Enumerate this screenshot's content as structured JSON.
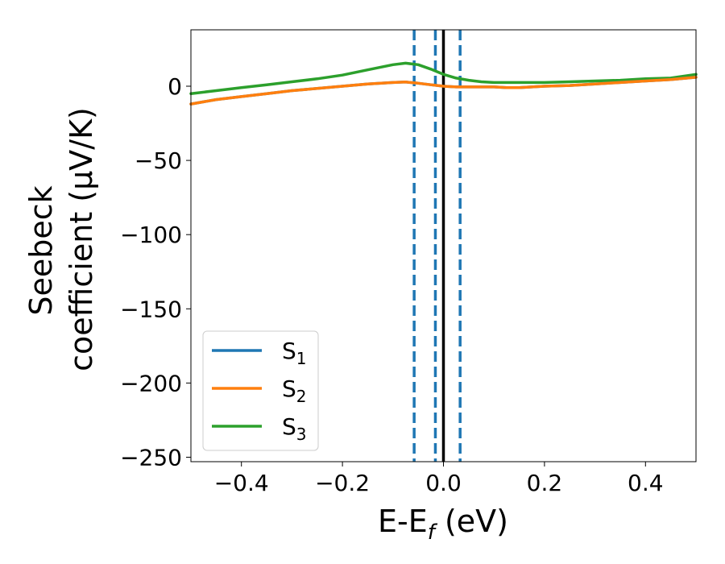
{
  "chart_data": {
    "type": "line",
    "xlabel_main": "E-E",
    "xlabel_sub": "f",
    "xlabel_unit": " (eV)",
    "ylabel_line1": "Seebeck",
    "ylabel_line2": "coefficient  (μV/K)",
    "xlim": [
      -0.5,
      0.5
    ],
    "ylim": [
      -253,
      38
    ],
    "grid": false,
    "legend_placement": "lower-left",
    "x_ticks": [
      -0.4,
      -0.2,
      0.0,
      0.2,
      0.4
    ],
    "x_tick_labels": [
      "−0.4",
      "−0.2",
      "0.0",
      "0.2",
      "0.4"
    ],
    "y_ticks": [
      0,
      -50,
      -100,
      -150,
      -200,
      -250
    ],
    "y_tick_labels": [
      "0",
      "−50",
      "−100",
      "−150",
      "−200",
      "−250"
    ],
    "vertical_lines": [
      {
        "x": -0.058,
        "style": "dashed",
        "color": "#1f77b4"
      },
      {
        "x": -0.016,
        "style": "dashed",
        "color": "#1f77b4"
      },
      {
        "x": 0.033,
        "style": "dashed",
        "color": "#1f77b4"
      },
      {
        "x": 0.0,
        "style": "solid",
        "color": "#000000"
      }
    ],
    "series": [
      {
        "name": "S",
        "subscript": "1",
        "color": "#1f77b4",
        "x": [
          -0.5,
          -0.45,
          -0.4,
          -0.35,
          -0.3,
          -0.25,
          -0.2,
          -0.15,
          -0.1,
          -0.075,
          -0.05,
          -0.025,
          0.0,
          0.025,
          0.05,
          0.075,
          0.1,
          0.125,
          0.15,
          0.2,
          0.25,
          0.3,
          0.35,
          0.4,
          0.45,
          0.5
        ],
        "values": [
          -12,
          -9,
          -7,
          -5,
          -3,
          -1.5,
          0,
          1.5,
          2.5,
          2.8,
          2,
          1,
          0,
          -0.5,
          -0.5,
          -0.5,
          -0.5,
          -1,
          -1,
          0,
          0.5,
          1.5,
          2.5,
          3.5,
          4.5,
          6
        ]
      },
      {
        "name": "S",
        "subscript": "2",
        "color": "#ff7f0e",
        "x": [
          -0.5,
          -0.45,
          -0.4,
          -0.35,
          -0.3,
          -0.25,
          -0.2,
          -0.15,
          -0.1,
          -0.075,
          -0.05,
          -0.025,
          0.0,
          0.025,
          0.05,
          0.075,
          0.1,
          0.125,
          0.15,
          0.2,
          0.25,
          0.3,
          0.35,
          0.4,
          0.45,
          0.5
        ],
        "values": [
          -12,
          -9,
          -7,
          -5,
          -3,
          -1.5,
          0,
          1.5,
          2.5,
          2.8,
          2,
          1,
          0,
          -0.5,
          -0.5,
          -0.5,
          -0.5,
          -1,
          -1,
          0,
          0.5,
          1.5,
          2.5,
          3.5,
          4.5,
          6
        ]
      },
      {
        "name": "S",
        "subscript": "3",
        "color": "#2ca02c",
        "x": [
          -0.5,
          -0.45,
          -0.4,
          -0.35,
          -0.3,
          -0.25,
          -0.2,
          -0.15,
          -0.1,
          -0.075,
          -0.05,
          -0.025,
          0.0,
          0.025,
          0.05,
          0.075,
          0.1,
          0.125,
          0.15,
          0.2,
          0.25,
          0.3,
          0.35,
          0.4,
          0.45,
          0.5
        ],
        "values": [
          -5,
          -3,
          -1,
          1,
          3,
          5,
          7.5,
          11,
          14.5,
          15.5,
          14.5,
          11.5,
          8,
          5.5,
          4,
          3,
          2.5,
          2.5,
          2.5,
          2.5,
          3,
          3.5,
          4,
          5,
          5.5,
          8
        ]
      }
    ]
  }
}
